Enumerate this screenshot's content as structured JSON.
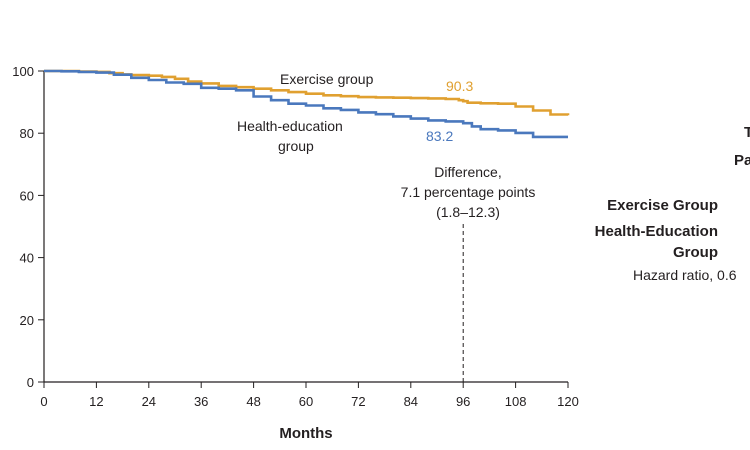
{
  "colors": {
    "exercise": "#e0a030",
    "health_education": "#4a78bd",
    "axis": "#231f20"
  },
  "chart_data": {
    "type": "line",
    "xlabel": "Months",
    "ylabel": "",
    "xlim": [
      0,
      120
    ],
    "ylim": [
      0,
      100
    ],
    "x_ticks": [
      "0",
      "12",
      "24",
      "36",
      "48",
      "60",
      "72",
      "84",
      "96",
      "108",
      "120"
    ],
    "y_ticks": [
      "0",
      "20",
      "40",
      "60",
      "80",
      "100"
    ],
    "grid": false,
    "series": [
      {
        "name": "Exercise group",
        "color": "#e0a030",
        "x": [
          0,
          4,
          8,
          12,
          15,
          18,
          20,
          24,
          27,
          30,
          33,
          36,
          40,
          44,
          48,
          52,
          56,
          60,
          64,
          68,
          72,
          76,
          80,
          84,
          88,
          92,
          95,
          96,
          97,
          100,
          104,
          108,
          112,
          116,
          120
        ],
        "y": [
          100,
          100,
          99.8,
          99.7,
          99.3,
          98.9,
          98.7,
          98.5,
          98.1,
          97.5,
          96.6,
          96.0,
          95.2,
          94.8,
          94.3,
          93.8,
          93.2,
          92.7,
          92.2,
          91.9,
          91.6,
          91.5,
          91.4,
          91.3,
          91.2,
          91.0,
          90.6,
          90.3,
          89.8,
          89.6,
          89.5,
          88.6,
          87.3,
          86.0,
          85.8
        ]
      },
      {
        "name": "Health-education group",
        "color": "#4a78bd",
        "x": [
          0,
          4,
          8,
          12,
          16,
          20,
          24,
          28,
          32,
          36,
          40,
          44,
          48,
          52,
          56,
          60,
          64,
          68,
          72,
          76,
          80,
          84,
          88,
          92,
          96,
          98,
          100,
          104,
          108,
          112,
          116,
          120
        ],
        "y": [
          100,
          99.9,
          99.7,
          99.5,
          98.8,
          97.8,
          97.1,
          96.3,
          95.9,
          94.6,
          94.3,
          93.8,
          91.8,
          90.6,
          89.5,
          88.9,
          88.0,
          87.5,
          86.7,
          86.1,
          85.4,
          84.7,
          84.1,
          83.8,
          83.2,
          82.2,
          81.3,
          80.9,
          80.1,
          78.8,
          78.8,
          78.8
        ]
      }
    ],
    "series_labels": {
      "exercise": "Exercise group",
      "health_education_line1": "Health-education",
      "health_education_line2": "group"
    },
    "annotations": {
      "reference_x": 96,
      "exercise_value": "90.3",
      "health_education_value": "83.2",
      "difference_line1": "Difference,",
      "difference_line2": "7.1 percentage points",
      "difference_line3": "(1.8–12.3)"
    }
  },
  "side_panel": {
    "clipped_top_a": "T",
    "clipped_top_b": "Pa",
    "exercise_group": "Exercise Group",
    "health_education_line1": "Health-Education",
    "health_education_line2": "Group",
    "hazard_ratio": "Hazard ratio, 0.6"
  }
}
